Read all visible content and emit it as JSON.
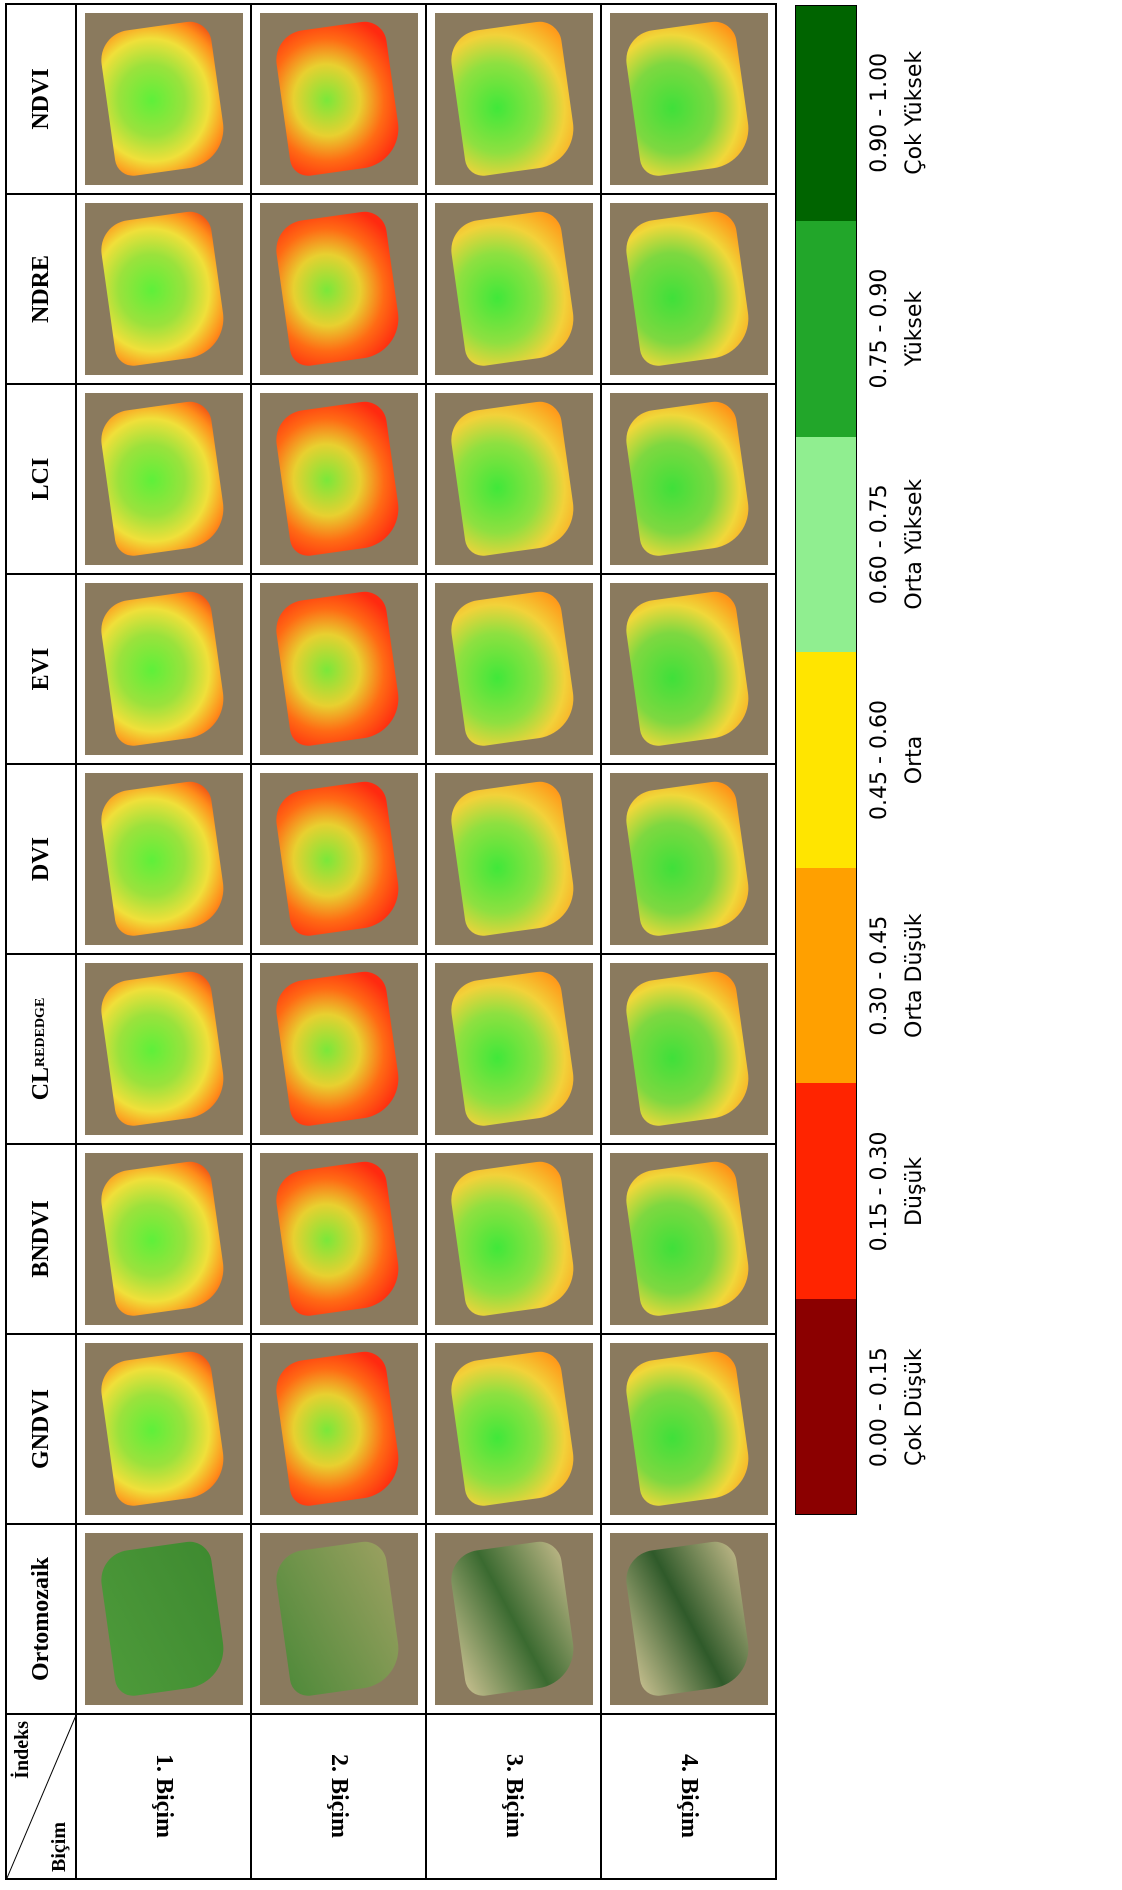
{
  "table": {
    "corner": {
      "top": "İndeks",
      "bottom": "Biçim"
    },
    "columns": [
      "Ortomozaik",
      "GNDVI",
      "BNDVI",
      {
        "main": "CL",
        "sub": "REDEDGE"
      },
      "DVI",
      "EVI",
      "LCI",
      "NDRE",
      "NDVI"
    ],
    "rows": [
      "1. Biçim",
      "2. Biçim",
      "3. Biçim",
      "4. Biçim"
    ]
  },
  "legend": {
    "items": [
      {
        "range": "0.00 - 0.15",
        "label": "Çok Düşük",
        "color": "#8b0000"
      },
      {
        "range": "0.15 - 0.30",
        "label": "Düşük",
        "color": "#ff2400"
      },
      {
        "range": "0.30 - 0.45",
        "label": "Orta Düşük",
        "color": "#ffa000"
      },
      {
        "range": "0.45 - 0.60",
        "label": "Orta",
        "color": "#ffe500"
      },
      {
        "range": "0.60 - 0.75",
        "label": "Orta Yüksek",
        "color": "#90ee90"
      },
      {
        "range": "0.75 - 0.90",
        "label": "Yüksek",
        "color": "#22a62a"
      },
      {
        "range": "0.90 - 1.00",
        "label": "Çok Yüksek",
        "color": "#006400"
      }
    ]
  }
}
